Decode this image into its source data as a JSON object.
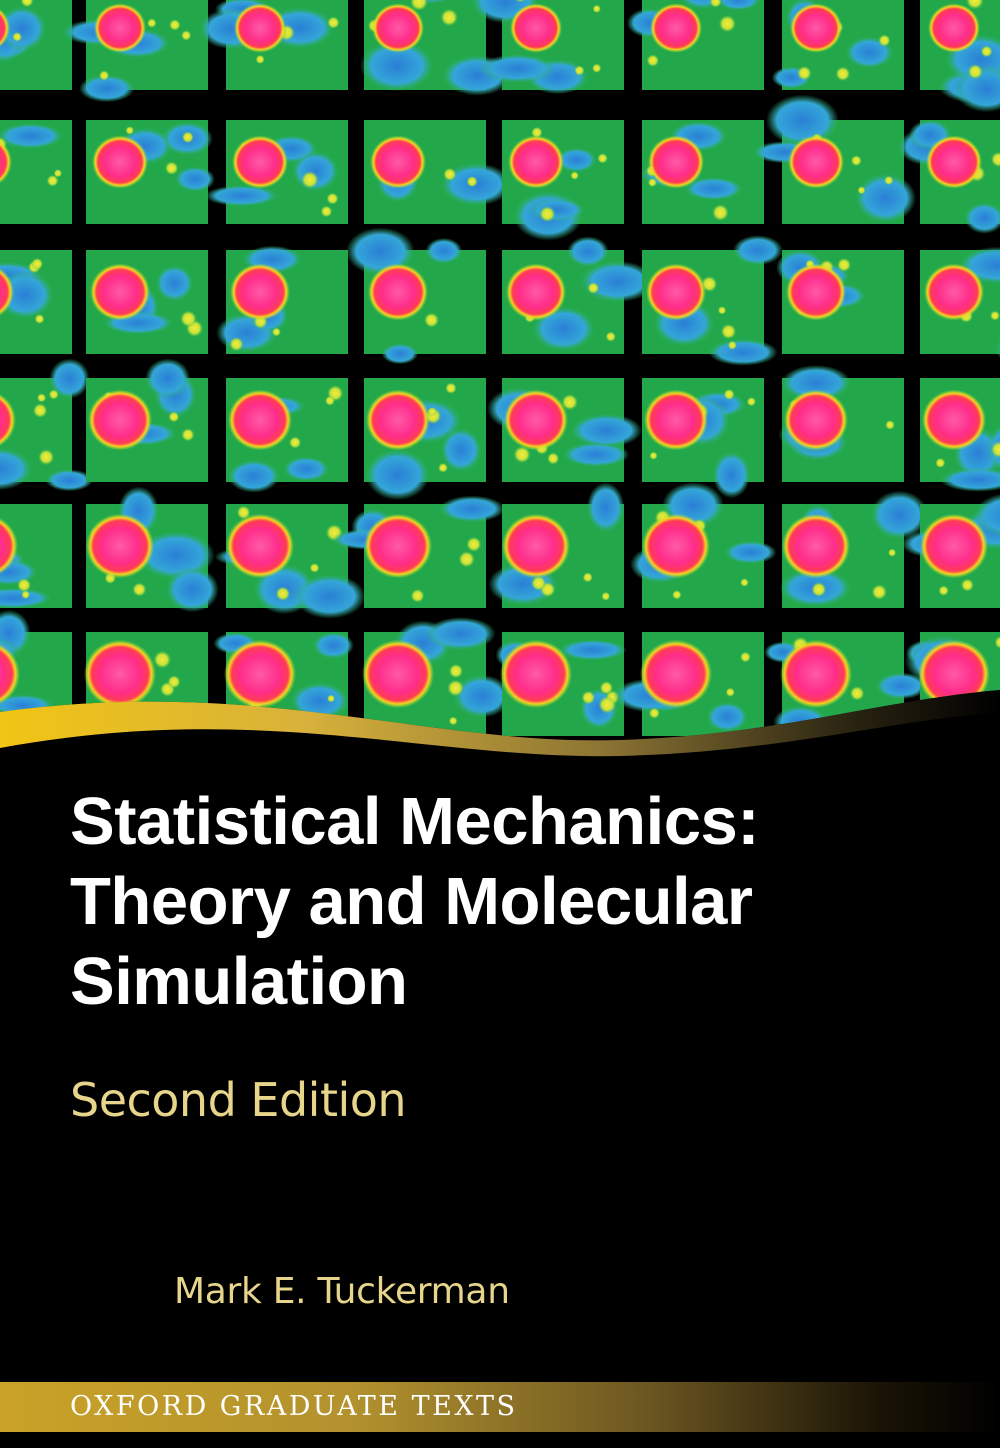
{
  "cover": {
    "title_lines": [
      "Statistical Mechanics:",
      "Theory and Molecular",
      "Simulation"
    ],
    "edition": "Second Edition",
    "author": "Mark E. Tuckerman",
    "series": "OXFORD GRADUATE TEXTS"
  },
  "artwork": {
    "description_icon": "density-grid-image",
    "grid_rows": 6,
    "grid_cols": 7,
    "colors": {
      "background": "#000000",
      "field_green": "#22a84a",
      "field_blue": "#2a8fd6",
      "blob_pink": "#ff2d8a",
      "blob_ring": "#f6d420",
      "gold": "#c9a227"
    }
  }
}
